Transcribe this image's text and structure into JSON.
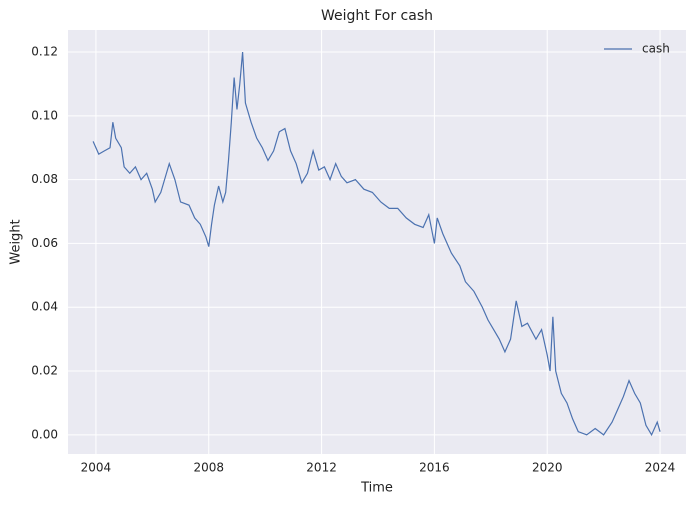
{
  "chart_data": {
    "type": "line",
    "title": "Weight For cash",
    "xlabel": "Time",
    "ylabel": "Weight",
    "x": [
      2003.9,
      2004.0,
      2004.1,
      2004.3,
      2004.5,
      2004.6,
      2004.7,
      2004.9,
      2005.0,
      2005.2,
      2005.4,
      2005.6,
      2005.8,
      2006.0,
      2006.1,
      2006.3,
      2006.5,
      2006.6,
      2006.8,
      2007.0,
      2007.3,
      2007.5,
      2007.7,
      2007.9,
      2008.0,
      2008.1,
      2008.2,
      2008.35,
      2008.5,
      2008.6,
      2008.7,
      2008.8,
      2008.9,
      2009.0,
      2009.1,
      2009.2,
      2009.3,
      2009.5,
      2009.7,
      2009.9,
      2010.1,
      2010.3,
      2010.5,
      2010.7,
      2010.9,
      2011.1,
      2011.3,
      2011.5,
      2011.7,
      2011.9,
      2012.1,
      2012.3,
      2012.5,
      2012.7,
      2012.9,
      2013.2,
      2013.5,
      2013.8,
      2014.1,
      2014.4,
      2014.7,
      2015.0,
      2015.3,
      2015.6,
      2015.8,
      2016.0,
      2016.1,
      2016.3,
      2016.6,
      2016.9,
      2017.1,
      2017.4,
      2017.7,
      2017.9,
      2018.1,
      2018.3,
      2018.5,
      2018.7,
      2018.9,
      2019.1,
      2019.3,
      2019.6,
      2019.8,
      2020.0,
      2020.1,
      2020.2,
      2020.3,
      2020.5,
      2020.7,
      2020.9,
      2021.1,
      2021.4,
      2021.7,
      2022.0,
      2022.3,
      2022.5,
      2022.7,
      2022.9,
      2023.1,
      2023.3,
      2023.5,
      2023.7,
      2023.9,
      2024.0
    ],
    "series": [
      {
        "name": "cash",
        "color": "#4c72b0",
        "values": [
          0.092,
          0.09,
          0.088,
          0.089,
          0.09,
          0.098,
          0.093,
          0.09,
          0.084,
          0.082,
          0.084,
          0.08,
          0.082,
          0.077,
          0.073,
          0.076,
          0.082,
          0.085,
          0.08,
          0.073,
          0.072,
          0.068,
          0.066,
          0.062,
          0.059,
          0.066,
          0.072,
          0.078,
          0.073,
          0.076,
          0.086,
          0.098,
          0.112,
          0.102,
          0.11,
          0.12,
          0.104,
          0.098,
          0.093,
          0.09,
          0.086,
          0.089,
          0.095,
          0.096,
          0.089,
          0.085,
          0.079,
          0.082,
          0.089,
          0.083,
          0.084,
          0.08,
          0.085,
          0.081,
          0.079,
          0.08,
          0.077,
          0.076,
          0.073,
          0.071,
          0.071,
          0.068,
          0.066,
          0.065,
          0.069,
          0.06,
          0.068,
          0.063,
          0.057,
          0.053,
          0.048,
          0.045,
          0.04,
          0.036,
          0.033,
          0.03,
          0.026,
          0.03,
          0.042,
          0.034,
          0.035,
          0.03,
          0.033,
          0.025,
          0.02,
          0.037,
          0.02,
          0.013,
          0.01,
          0.005,
          0.001,
          0.0,
          0.002,
          0.0,
          0.004,
          0.008,
          0.012,
          0.017,
          0.013,
          0.01,
          0.003,
          0.0,
          0.004,
          0.001
        ]
      }
    ],
    "xlim": [
      2003.01,
      2024.92
    ],
    "xticks": [
      2004,
      2008,
      2012,
      2016,
      2020,
      2024
    ],
    "ylim": [
      -0.006,
      0.1269
    ],
    "yticks": [
      {
        "value": 0,
        "label": "0.00"
      },
      {
        "value": 0.02,
        "label": "0.02"
      },
      {
        "value": 0.04,
        "label": "0.04"
      },
      {
        "value": 0.06,
        "label": "0.06"
      },
      {
        "value": 0.08,
        "label": "0.08"
      },
      {
        "value": 0.1,
        "label": "0.10"
      },
      {
        "value": 0.12,
        "label": "0.12"
      }
    ],
    "grid": true,
    "legend": "upper right"
  }
}
